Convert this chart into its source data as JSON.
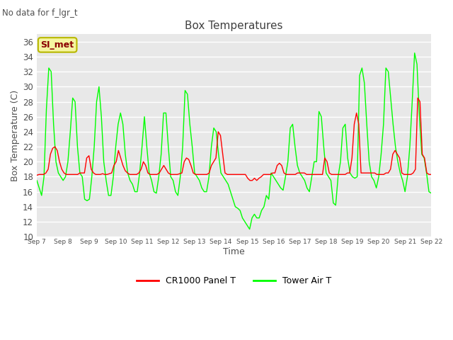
{
  "title": "Box Temperatures",
  "xlabel": "Time",
  "ylabel": "Box Temperature (C)",
  "top_left_text": "No data for f_lgr_t",
  "annotation_box": "SI_met",
  "ylim": [
    10,
    37
  ],
  "yticks": [
    10,
    12,
    14,
    16,
    18,
    20,
    22,
    24,
    26,
    28,
    30,
    32,
    34,
    36
  ],
  "xtick_labels": [
    "Sep 7",
    "Sep 8",
    "Sep 9",
    "Sep 10",
    "Sep 11",
    "Sep 12",
    "Sep 13",
    "Sep 14",
    "Sep 15",
    "Sep 16",
    "Sep 17",
    "Sep 18",
    "Sep 19",
    "Sep 20",
    "Sep 21",
    "Sep 22"
  ],
  "background_color": "#ffffff",
  "plot_bg_color": "#e8e8e8",
  "grid_color": "#ffffff",
  "cr1000_color": "#ff0000",
  "tower_color": "#00ff00",
  "title_color": "#404040",
  "label_color": "#505050",
  "tower_t": [
    17.5,
    16.5,
    15.5,
    18.0,
    27.0,
    32.5,
    32.0,
    25.0,
    20.0,
    18.5,
    18.0,
    17.5,
    18.0,
    20.0,
    24.0,
    28.5,
    28.0,
    22.0,
    18.5,
    18.0,
    15.0,
    14.8,
    15.0,
    18.0,
    22.0,
    28.0,
    30.0,
    26.0,
    20.0,
    17.5,
    15.5,
    15.5,
    18.0,
    22.0,
    25.0,
    26.5,
    25.0,
    21.0,
    18.5,
    17.5,
    17.0,
    16.0,
    16.0,
    18.5,
    22.0,
    26.0,
    22.0,
    18.5,
    17.5,
    16.0,
    15.8,
    18.0,
    21.0,
    26.5,
    26.5,
    22.0,
    18.0,
    17.5,
    16.0,
    15.5,
    18.0,
    22.0,
    29.5,
    29.0,
    25.0,
    22.0,
    18.5,
    18.0,
    17.5,
    16.5,
    16.0,
    16.0,
    18.0,
    22.0,
    24.5,
    24.0,
    21.0,
    18.5,
    18.0,
    17.5,
    17.0,
    16.0,
    15.0,
    14.0,
    13.8,
    13.5,
    12.5,
    12.0,
    11.5,
    11.0,
    12.5,
    13.0,
    12.5,
    12.5,
    13.5,
    14.0,
    15.5,
    15.0,
    18.5,
    18.0,
    17.5,
    17.0,
    16.5,
    16.2,
    18.0,
    20.0,
    24.5,
    25.0,
    22.0,
    19.5,
    18.5,
    18.0,
    17.5,
    16.5,
    16.0,
    18.0,
    20.0,
    20.0,
    26.7,
    26.0,
    22.0,
    18.5,
    18.0,
    17.5,
    14.5,
    14.2,
    18.0,
    20.0,
    24.5,
    25.0,
    20.5,
    18.5,
    18.0,
    17.8,
    18.0,
    31.5,
    32.5,
    30.5,
    25.0,
    20.0,
    18.0,
    17.5,
    16.5,
    18.0,
    21.0,
    25.0,
    32.5,
    32.0,
    28.5,
    25.0,
    22.0,
    20.0,
    18.5,
    17.5,
    16.0,
    18.0,
    22.0,
    28.0,
    34.5,
    33.0,
    26.0,
    21.0,
    20.5,
    18.5,
    16.0,
    15.8
  ],
  "cr1000_t": [
    18.2,
    18.3,
    18.3,
    18.3,
    18.5,
    19.0,
    21.0,
    21.8,
    22.0,
    21.5,
    20.0,
    19.0,
    18.5,
    18.3,
    18.3,
    18.3,
    18.3,
    18.3,
    18.3,
    18.5,
    18.5,
    18.5,
    20.5,
    20.8,
    19.0,
    18.5,
    18.3,
    18.3,
    18.3,
    18.4,
    18.3,
    18.3,
    18.4,
    18.5,
    19.5,
    20.0,
    21.5,
    20.5,
    19.5,
    18.8,
    18.5,
    18.3,
    18.3,
    18.3,
    18.3,
    18.5,
    19.0,
    20.0,
    19.5,
    18.5,
    18.3,
    18.3,
    18.3,
    18.3,
    18.5,
    19.0,
    19.5,
    19.0,
    18.5,
    18.3,
    18.3,
    18.3,
    18.3,
    18.4,
    18.5,
    20.0,
    20.5,
    20.3,
    19.5,
    18.5,
    18.3,
    18.3,
    18.3,
    18.3,
    18.3,
    18.3,
    18.5,
    19.5,
    20.0,
    20.5,
    24.0,
    23.5,
    21.0,
    18.5,
    18.3,
    18.3,
    18.3,
    18.3,
    18.3,
    18.3,
    18.3,
    18.3,
    18.3,
    17.8,
    17.5,
    17.5,
    17.8,
    17.5,
    17.8,
    18.0,
    18.3,
    18.3,
    18.3,
    18.3,
    18.5,
    18.5,
    19.5,
    19.8,
    19.5,
    18.5,
    18.3,
    18.3,
    18.3,
    18.3,
    18.3,
    18.5,
    18.5,
    18.5,
    18.5,
    18.3,
    18.3,
    18.3,
    18.3,
    18.3,
    18.3,
    18.3,
    18.3,
    20.5,
    20.0,
    18.5,
    18.3,
    18.3,
    18.3,
    18.3,
    18.3,
    18.3,
    18.3,
    18.5,
    18.5,
    20.5,
    25.0,
    26.5,
    25.0,
    18.5,
    18.5,
    18.5,
    18.5,
    18.5,
    18.5,
    18.5,
    18.3,
    18.3,
    18.3,
    18.3,
    18.5,
    18.5,
    19.0,
    21.0,
    21.5,
    21.0,
    20.5,
    18.5,
    18.3,
    18.3,
    18.3,
    18.3,
    18.5,
    19.0,
    28.5,
    28.0,
    21.0,
    20.5,
    18.5,
    18.3,
    18.3
  ]
}
